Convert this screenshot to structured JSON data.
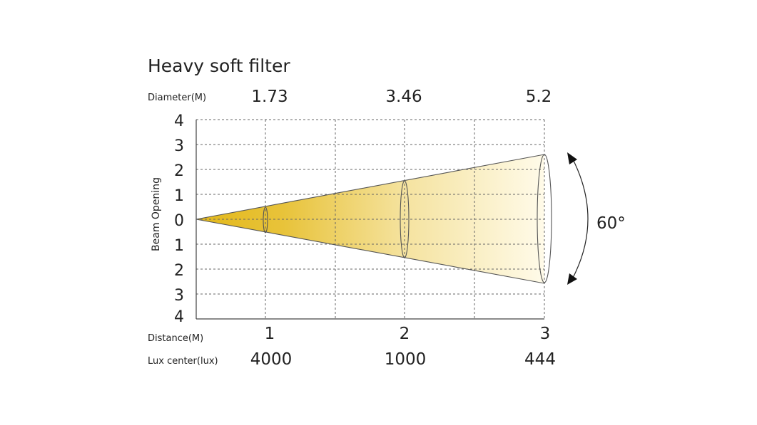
{
  "title": "Heavy soft filter",
  "row_labels": {
    "diameter": "Diameter(M)",
    "distance": "Distance(M)",
    "lux": "Lux center(lux)"
  },
  "y_axis_label": "Beam Opening",
  "y_ticks": [
    "4",
    "3",
    "2",
    "1",
    "0",
    "1",
    "2",
    "3",
    "4"
  ],
  "distances": [
    "1",
    "2",
    "3"
  ],
  "diameters": [
    "1.73",
    "3.46",
    "5.2"
  ],
  "lux_values": [
    "4000",
    "1000",
    "444"
  ],
  "beam_angle": "60°",
  "colors": {
    "beam_start": "#e3b81a",
    "beam_end": "#fffbea",
    "grid": "#666666"
  }
}
